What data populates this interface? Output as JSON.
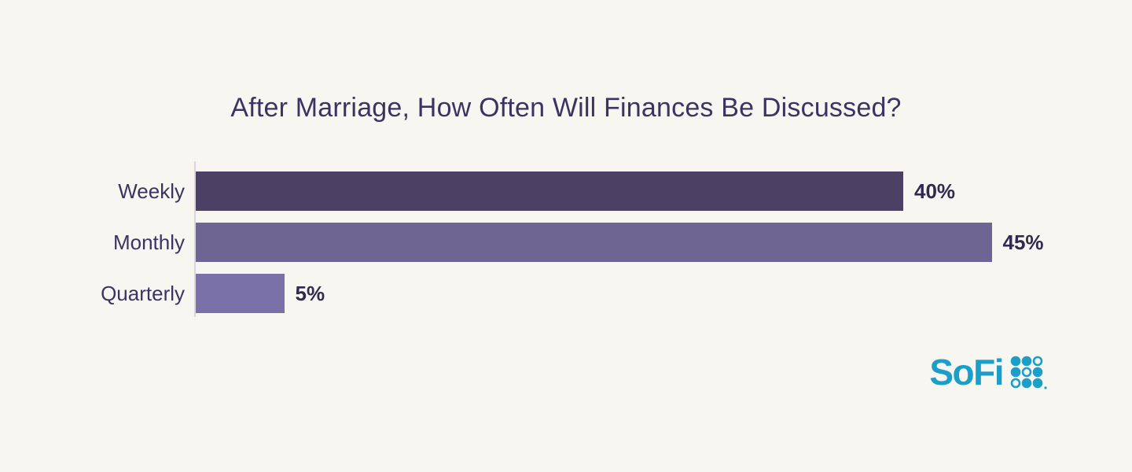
{
  "chart_data": {
    "type": "bar",
    "orientation": "horizontal",
    "title": "After Marriage, How Often Will Finances Be Discussed?",
    "categories": [
      "Weekly",
      "Monthly",
      "Quarterly"
    ],
    "values": [
      40,
      45,
      5
    ],
    "value_labels": [
      "40%",
      "45%",
      "5%"
    ],
    "bar_colors": [
      "#4a4164",
      "#6e6593",
      "#7a71a8"
    ],
    "xlim": [
      0,
      50
    ],
    "grid": false,
    "legend": "none",
    "xlabel": "",
    "ylabel": ""
  },
  "colors": {
    "background": "#f8f6f1",
    "title_text": "#3b3462",
    "category_text": "#3b3462",
    "value_text": "#302a50",
    "axis_line": "#d9d6e2",
    "brand_teal": "#1b9fc9"
  },
  "logo": {
    "text": "SoFi",
    "dots_icon": "sofi-dot-grid-icon",
    "dot_pattern": [
      [
        "filled",
        "filled",
        "outline"
      ],
      [
        "filled",
        "outline",
        "filled"
      ],
      [
        "outline",
        "filled",
        "filled"
      ]
    ]
  }
}
